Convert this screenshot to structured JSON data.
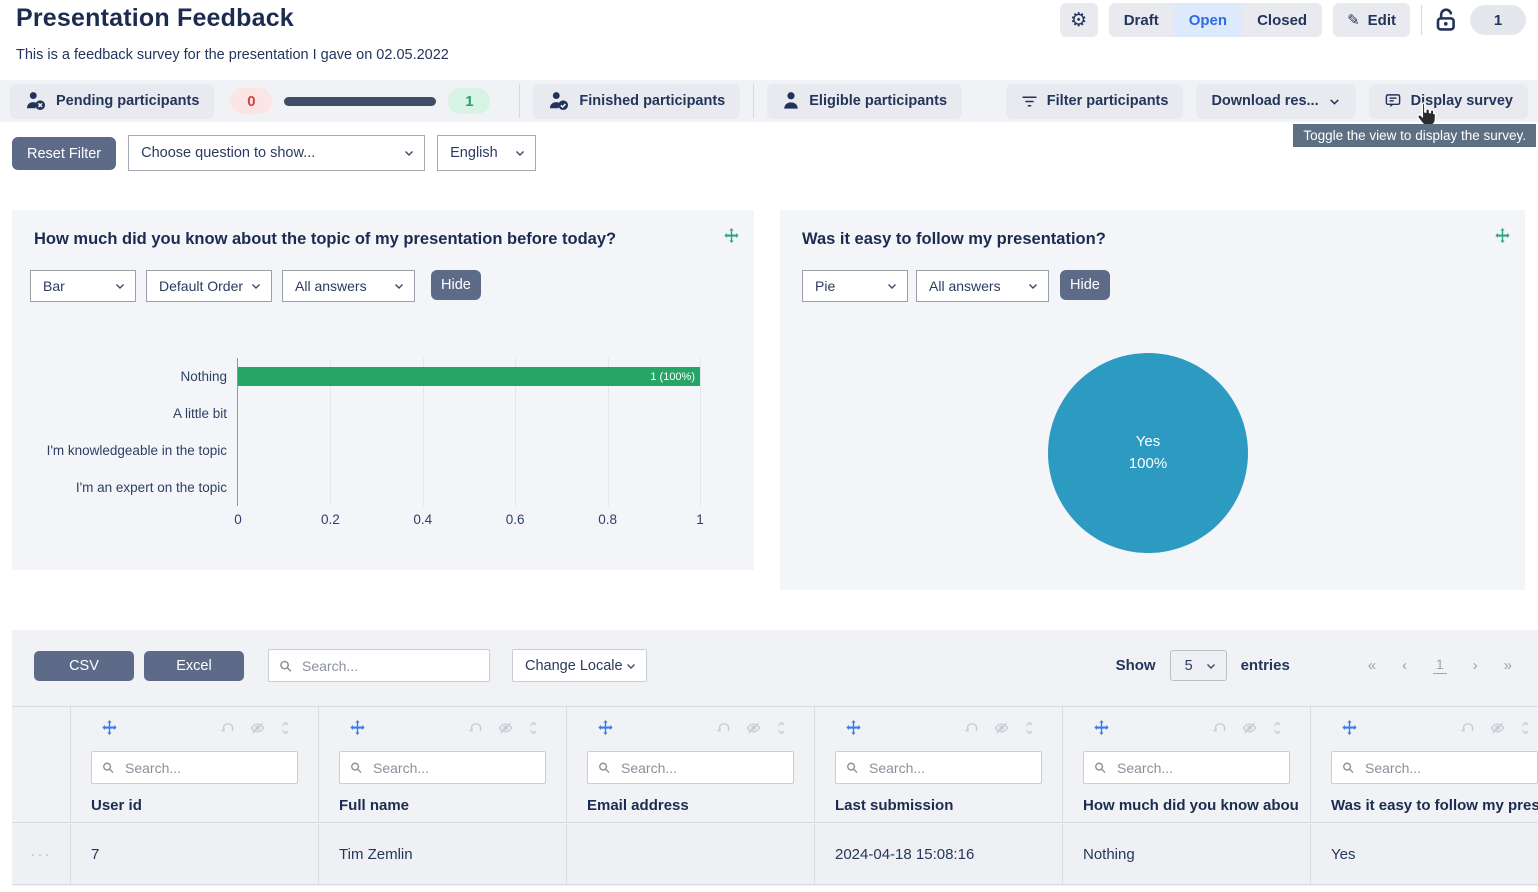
{
  "page": {
    "title": "Presentation Feedback",
    "subtitle": "This is a feedback survey for the presentation I gave on 02.05.2022"
  },
  "header": {
    "statuses": [
      "Draft",
      "Open",
      "Closed"
    ],
    "active_status": "Open",
    "edit": "Edit",
    "edit_icon": "✎",
    "gear_icon": "⚙",
    "count_badge": "1"
  },
  "participants_bar": {
    "pending": "Pending participants",
    "pending_count": "0",
    "finished_count": "1",
    "finished": "Finished participants",
    "eligible": "Eligible participants",
    "filter": "Filter participants",
    "download": "Download res...",
    "display": "Display survey",
    "tooltip": "Toggle the view to display the survey."
  },
  "filter_row": {
    "reset": "Reset Filter",
    "question_placeholder": "Choose question to show...",
    "language": "English"
  },
  "cards": [
    {
      "title": "How much did you know about the topic of my presentation before today?",
      "chart_type": "Bar",
      "order": "Default Order",
      "answers": "All answers",
      "hide": "Hide"
    },
    {
      "title": "Was it easy to follow my presentation?",
      "chart_type": "Pie",
      "answers": "All answers",
      "hide": "Hide",
      "pie_label_line1": "Yes",
      "pie_label_line2": "100%"
    }
  ],
  "chart_data": [
    {
      "type": "bar",
      "orientation": "horizontal",
      "title": "How much did you know about the topic of my presentation before today?",
      "categories": [
        "Nothing",
        "A little bit",
        "I'm knowledgeable in the topic",
        "I'm an expert on the topic"
      ],
      "values": [
        1,
        0,
        0,
        0
      ],
      "bar_labels": [
        "1 (100%)",
        "",
        "",
        ""
      ],
      "x_ticks": [
        "0",
        "0.2",
        "0.4",
        "0.6",
        "0.8",
        "1"
      ],
      "xlim": [
        0,
        1
      ],
      "bar_color": "#27a567",
      "grid": true,
      "legend": false
    },
    {
      "type": "pie",
      "title": "Was it easy to follow my presentation?",
      "labels": [
        "Yes"
      ],
      "values": [
        100
      ],
      "unit": "%",
      "colors": [
        "#2d9ac1"
      ],
      "center_label": "Yes 100%"
    }
  ],
  "table": {
    "csv": "CSV",
    "excel": "Excel",
    "search_placeholder": "Search...",
    "change_locale": "Change Locale",
    "show": "Show",
    "page_size": "5",
    "entries": "entries",
    "pagination": [
      "«",
      "‹",
      "1",
      "›",
      "»"
    ],
    "columns": [
      "User id",
      "Full name",
      "Email address",
      "Last submission",
      "How much did you know about the topic of my presentation before today?",
      "Was it easy to follow my presentation?"
    ],
    "expand_glyph": "···",
    "rows": [
      [
        "7",
        "Tim Zemlin",
        "",
        "2024-04-18 15:08:16",
        "Nothing",
        "Yes"
      ]
    ]
  }
}
